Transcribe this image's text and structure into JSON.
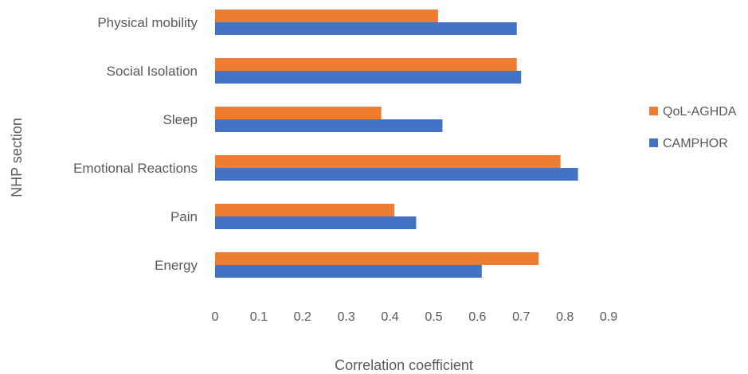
{
  "chart_data": {
    "type": "bar",
    "orientation": "horizontal",
    "categories": [
      "Physical mobility",
      "Social Isolation",
      "Sleep",
      "Emotional Reactions",
      "Pain",
      "Energy"
    ],
    "series": [
      {
        "name": "QoL-AGHDA",
        "color": "#ED7D31",
        "values": [
          0.51,
          0.69,
          0.38,
          0.79,
          0.41,
          0.74
        ]
      },
      {
        "name": "CAMPHOR",
        "color": "#4472C4",
        "values": [
          0.69,
          0.7,
          0.52,
          0.83,
          0.46,
          0.61
        ]
      }
    ],
    "xlabel": "Correlation coefficient",
    "ylabel": "NHP section",
    "xlim": [
      0,
      0.9
    ],
    "xticks": [
      "0",
      "0.1",
      "0.2",
      "0.3",
      "0.4",
      "0.5",
      "0.6",
      "0.7",
      "0.8",
      "0.9"
    ],
    "grid": false,
    "legend_position": "right"
  }
}
